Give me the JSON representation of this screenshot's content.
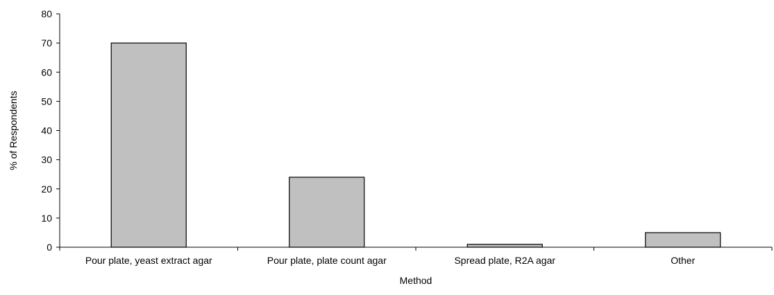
{
  "chart_data": {
    "type": "bar",
    "title": "",
    "xlabel": "Method",
    "ylabel": "% of Respondents",
    "categories": [
      "Pour plate, yeast extract agar",
      "Pour plate, plate count agar",
      "Spread plate, R2A agar",
      "Other"
    ],
    "values": [
      70,
      24,
      1,
      5
    ],
    "ylim": [
      0,
      80
    ],
    "yticks": [
      "0",
      "10",
      "20",
      "30",
      "40",
      "50",
      "60",
      "70",
      "80"
    ],
    "grid": false,
    "legend": "none",
    "bar_color": "#c0c0c0",
    "bar_stroke": "#000000"
  }
}
